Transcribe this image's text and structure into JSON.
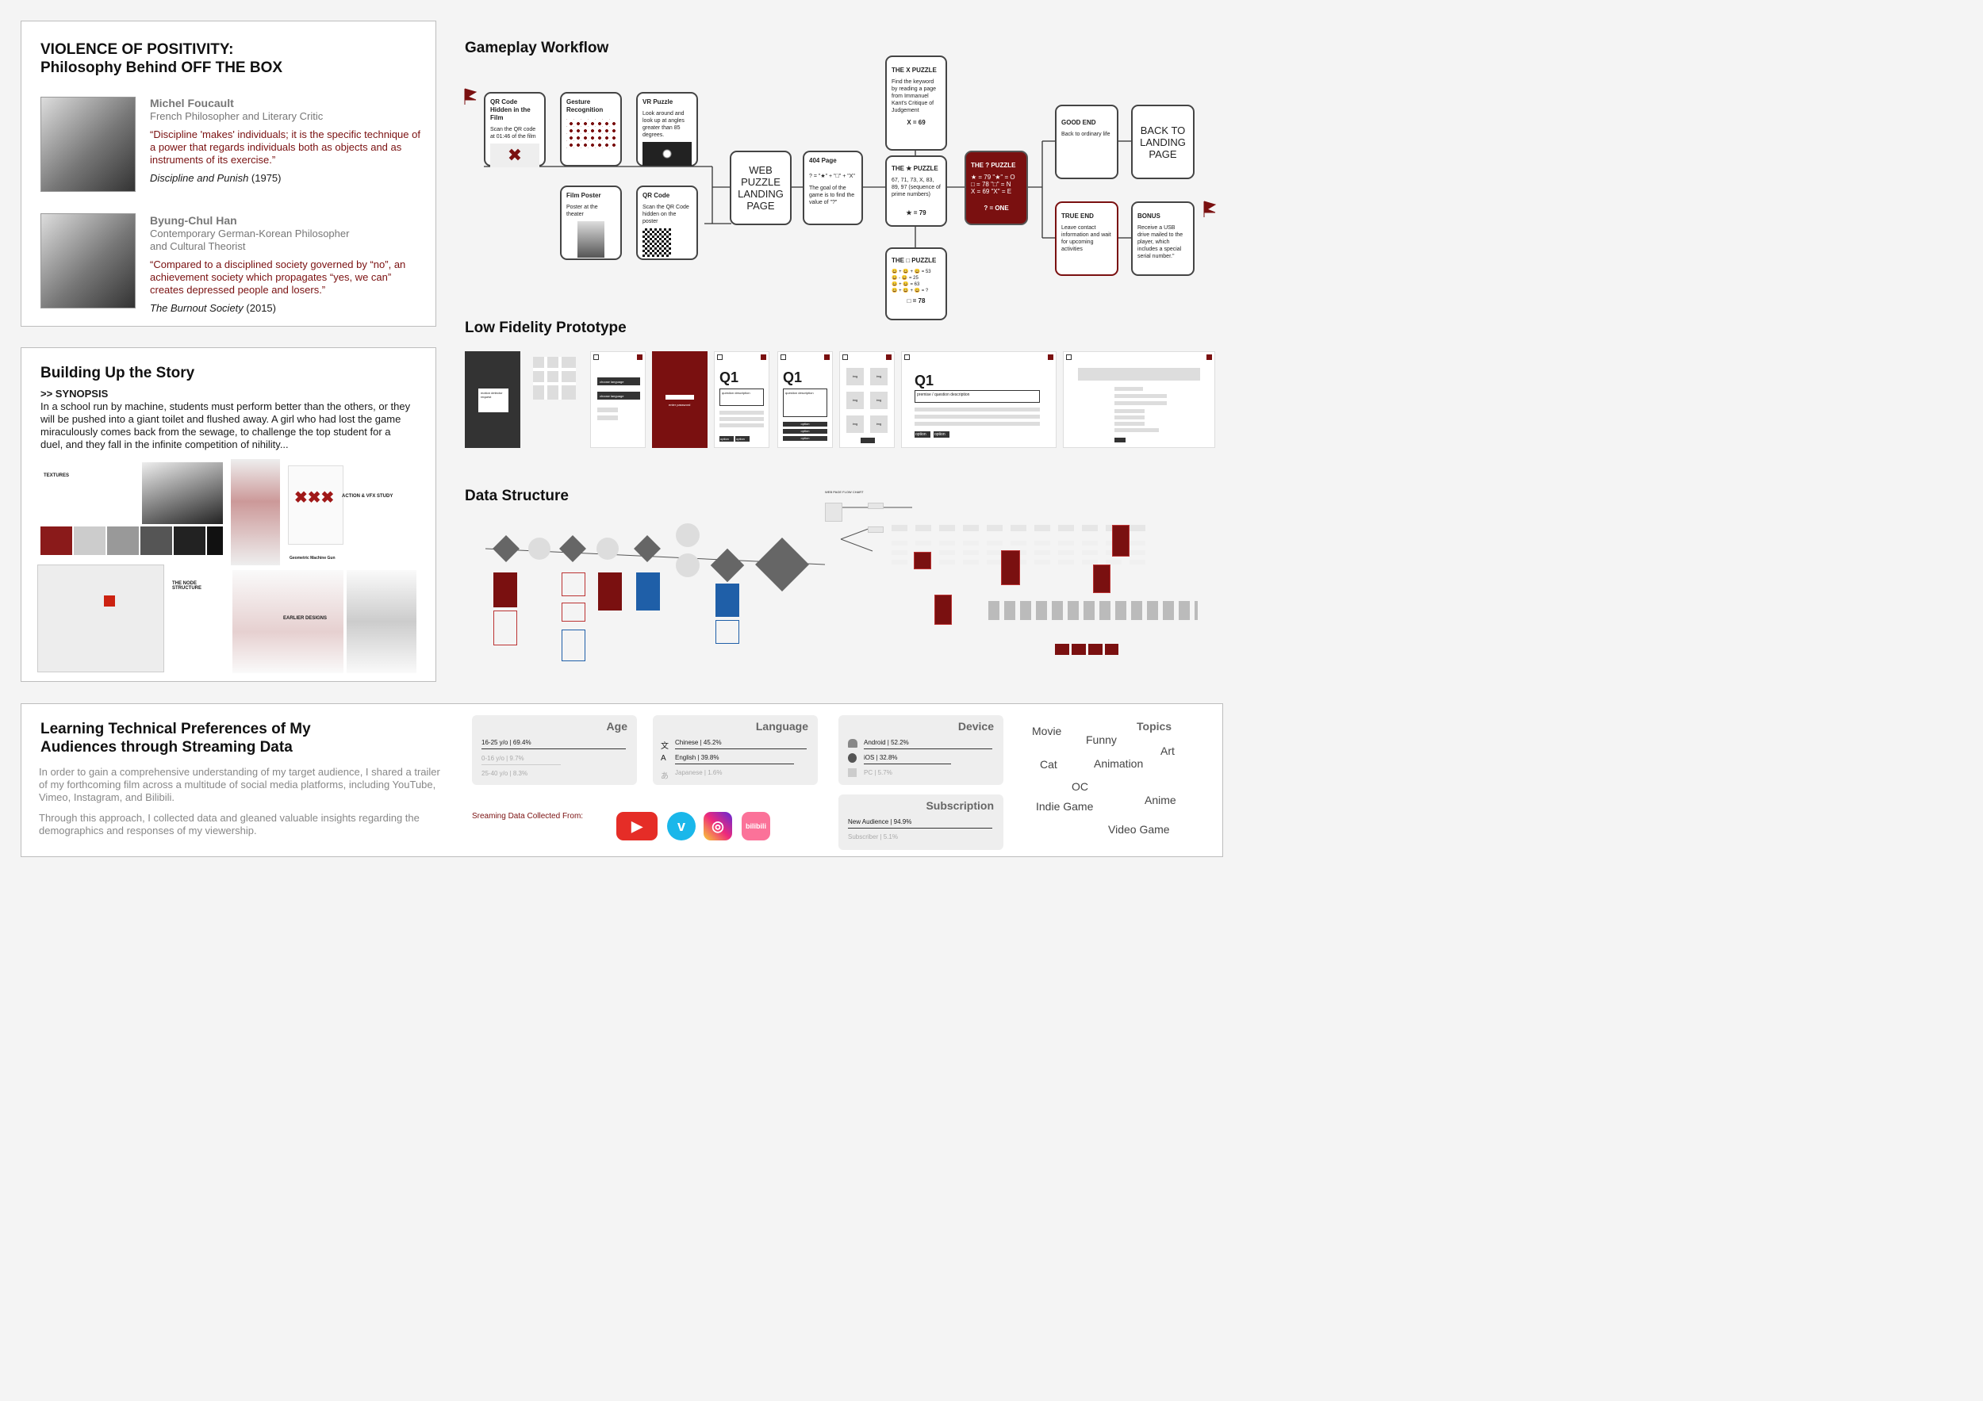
{
  "philosophy": {
    "title_line1": "VIOLENCE OF POSITIVITY:",
    "title_line2": "Philosophy Behind OFF THE BOX",
    "p1": {
      "name": "Michel Foucault",
      "role": "French Philosopher and Literary Critic",
      "quote": "“Discipline 'makes' individuals; it is the specific technique of a power that regards individuals both as objects and as instruments of its exercise.”",
      "work": "Discipline and Punish",
      "year": " (1975)"
    },
    "p2": {
      "name": "Byung-Chul Han",
      "role_line1": "Contemporary German-Korean Philosopher",
      "role_line2": "and Cultural Theorist",
      "quote": "“Compared to a disciplined society governed by “no”, an achievement society which propagates “yes, we can” creates depressed people and losers.”",
      "work": "The Burnout Society",
      "year": " (2015)"
    }
  },
  "story": {
    "title": "Building Up the Story",
    "synopsis_label": ">> SYNOPSIS",
    "synopsis": "In a school run by machine, students must perform better than the others, or they will be pushed into a giant toilet and flushed away. A girl who had lost the game miraculously comes back from the sewage, to challenge the top student for a duel, and they fall in the infinite competition of nihility...",
    "textures": "TEXTURES",
    "action": "ACTION & VFX STUDY",
    "node_structure_line1": "THE NODE",
    "node_structure_line2": "STRUCTURE",
    "gun": "Geometric Machine Gun",
    "earlier": "EARLIER DESIGNS"
  },
  "workflow": {
    "title": "Gameplay Workflow",
    "qr_hidden": {
      "title": "QR Code Hidden in the Film",
      "text": "Scan the QR code at 01:46 of the film"
    },
    "gesture": {
      "title": "Gesture Recognition"
    },
    "vr": {
      "title": "VR Puzzle",
      "text": "Look around and look up at angles greater than 85 degrees."
    },
    "poster": {
      "title": "Film Poster",
      "text": "Poster at the theater"
    },
    "qrcode": {
      "title": "QR Code",
      "text": "Scan the QR Code hidden on the poster"
    },
    "landing": "WEB PUZZLE LANDING PAGE",
    "page404": {
      "title": "404 Page",
      "formula": "? = \"★\" + \"□\" + \"X\"",
      "text": "The goal of the game is to find the value of \"?\""
    },
    "x_puzzle": {
      "title": "THE X PUZZLE",
      "text": "Find the keyword by reading a page from Immanuel Kant's Critique of Judgement",
      "answer": "X = 69"
    },
    "star_puzzle": {
      "title": "THE ★ PUZZLE",
      "text": "67, 71, 73, X, 83, 89, 97 (sequence of prime numbers)",
      "answer": "★ = 79"
    },
    "box_puzzle": {
      "title": "THE □ PUZZLE",
      "rows": [
        "😀 + 😀 + 😀 = 53",
        "😀 - 😀 = 25",
        "😀 + 😀 = 63",
        "😀 + 😀 + 😀 = ?"
      ],
      "answer": "□ = 78"
    },
    "q_puzzle": {
      "title": "THE ? PUZZLE",
      "l1": "★ = 79  \"★\" = O",
      "l2": "□ = 78  \"□\" = N",
      "l3": "X = 69  \"X\" = E",
      "answer": "? = ONE"
    },
    "good_end": {
      "title": "GOOD END",
      "text": "Back to ordinary life"
    },
    "back_landing": "BACK TO LANDING PAGE",
    "true_end": {
      "title": "TRUE END",
      "text": "Leave contact information and wait for upcoming activities"
    },
    "bonus": {
      "title": "BONUS",
      "text": "Receive a USB drive mailed to the player, which includes a special serial number.\""
    }
  },
  "prototype": {
    "title": "Low Fidelity Prototype",
    "motion": "motion detector request",
    "lang1": "choose language",
    "lang2": "choose language",
    "password": "enter password",
    "q1": "Q1",
    "qdesc": "question description",
    "premise": "premise / question description",
    "option": "option",
    "img": "img"
  },
  "data_structure": {
    "title": "Data Structure",
    "flowchart_label": "WEB PAGE FLOW CHART"
  },
  "audience": {
    "title_line1": "Learning Technical Preferences of My",
    "title_line2": "Audiences through Streaming Data",
    "para1": "In order to gain a comprehensive understanding of my target audience, I shared a trailer of my forthcoming film across a multitude of social media platforms, including YouTube, Vimeo, Instagram, and Bilibili.",
    "para2": "Through this approach, I collected data and gleaned valuable insights regarding the demographics and responses of my viewership.",
    "source_label": "Sreaming Data Collected From:",
    "age": {
      "title": "Age",
      "rows": [
        {
          "label": "16-25 y/o | 69.4%",
          "value": 69.4
        },
        {
          "label": "0-16 y/o | 9.7%",
          "value": 9.7
        },
        {
          "label": "25-40 y/o | 8.3%",
          "value": 8.3
        }
      ]
    },
    "language": {
      "title": "Language",
      "rows": [
        {
          "label": "Chinese | 45.2%",
          "value": 45.2,
          "icon": "文"
        },
        {
          "label": "English | 39.8%",
          "value": 39.8,
          "icon": "A"
        },
        {
          "label": "Japanese | 1.6%",
          "value": 1.6,
          "icon": "あ"
        }
      ]
    },
    "device": {
      "title": "Device",
      "rows": [
        {
          "label": "Android | 52.2%",
          "value": 52.2
        },
        {
          "label": "iOS | 32.8%",
          "value": 32.8
        },
        {
          "label": "PC | 5.7%",
          "value": 5.7
        }
      ]
    },
    "subscription": {
      "title": "Subscription",
      "rows": [
        {
          "label": "New Audience | 94.9%",
          "value": 94.9
        },
        {
          "label": "Subscriber | 5.1%",
          "value": 5.1
        }
      ]
    },
    "topics_title": "Topics",
    "topics": [
      "Movie",
      "Funny",
      "Art",
      "Cat",
      "Animation",
      "OC",
      "Indie Game",
      "Anime",
      "Video Game"
    ],
    "platforms": [
      "YouTube",
      "Vimeo",
      "Instagram",
      "Bilibili"
    ],
    "platform_logo_text": [
      "bilibili"
    ]
  },
  "colors": {
    "accent_red": "#7a1010",
    "workflow_blue": "#1f5fa8",
    "youtube": "#e52d27",
    "vimeo": "#1ab7ea",
    "bilibili": "#fb7299"
  }
}
